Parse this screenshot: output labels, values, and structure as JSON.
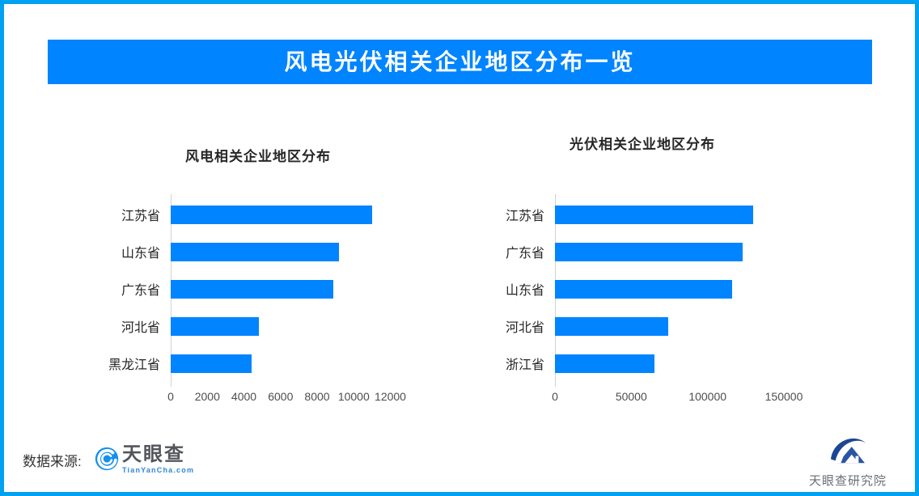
{
  "frame": {
    "border_color": "#00a1f0"
  },
  "banner": {
    "title": "风电光伏相关企业地区分布一览",
    "bg_color": "#0084ff",
    "text_color": "#ffffff"
  },
  "chart_data": [
    {
      "type": "bar",
      "orientation": "horizontal",
      "title": "风电相关企业地区分布",
      "categories": [
        "江苏省",
        "山东省",
        "广东省",
        "河北省",
        "黑龙江省"
      ],
      "values": [
        11000,
        9200,
        8900,
        4800,
        4400
      ],
      "xticks": [
        0,
        2000,
        4000,
        6000,
        8000,
        10000,
        12000
      ],
      "xlim": [
        0,
        12000
      ],
      "bar_color": "#0084ff",
      "grid": false,
      "legend": "none"
    },
    {
      "type": "bar",
      "orientation": "horizontal",
      "title": "光伏相关企业地区分布",
      "categories": [
        "江苏省",
        "广东省",
        "山东省",
        "河北省",
        "浙江省"
      ],
      "values": [
        130000,
        123000,
        116000,
        74000,
        65000
      ],
      "xticks": [
        0,
        50000,
        100000,
        150000
      ],
      "xlim": [
        0,
        150000
      ],
      "bar_color": "#0084ff",
      "grid": false,
      "legend": "none"
    }
  ],
  "footer": {
    "source_label": "数据来源:",
    "tianyancha_logo": {
      "name": "天眼查",
      "subtext": "TianYanCha.com"
    },
    "research_logo": {
      "name": "天眼查研究院"
    }
  }
}
